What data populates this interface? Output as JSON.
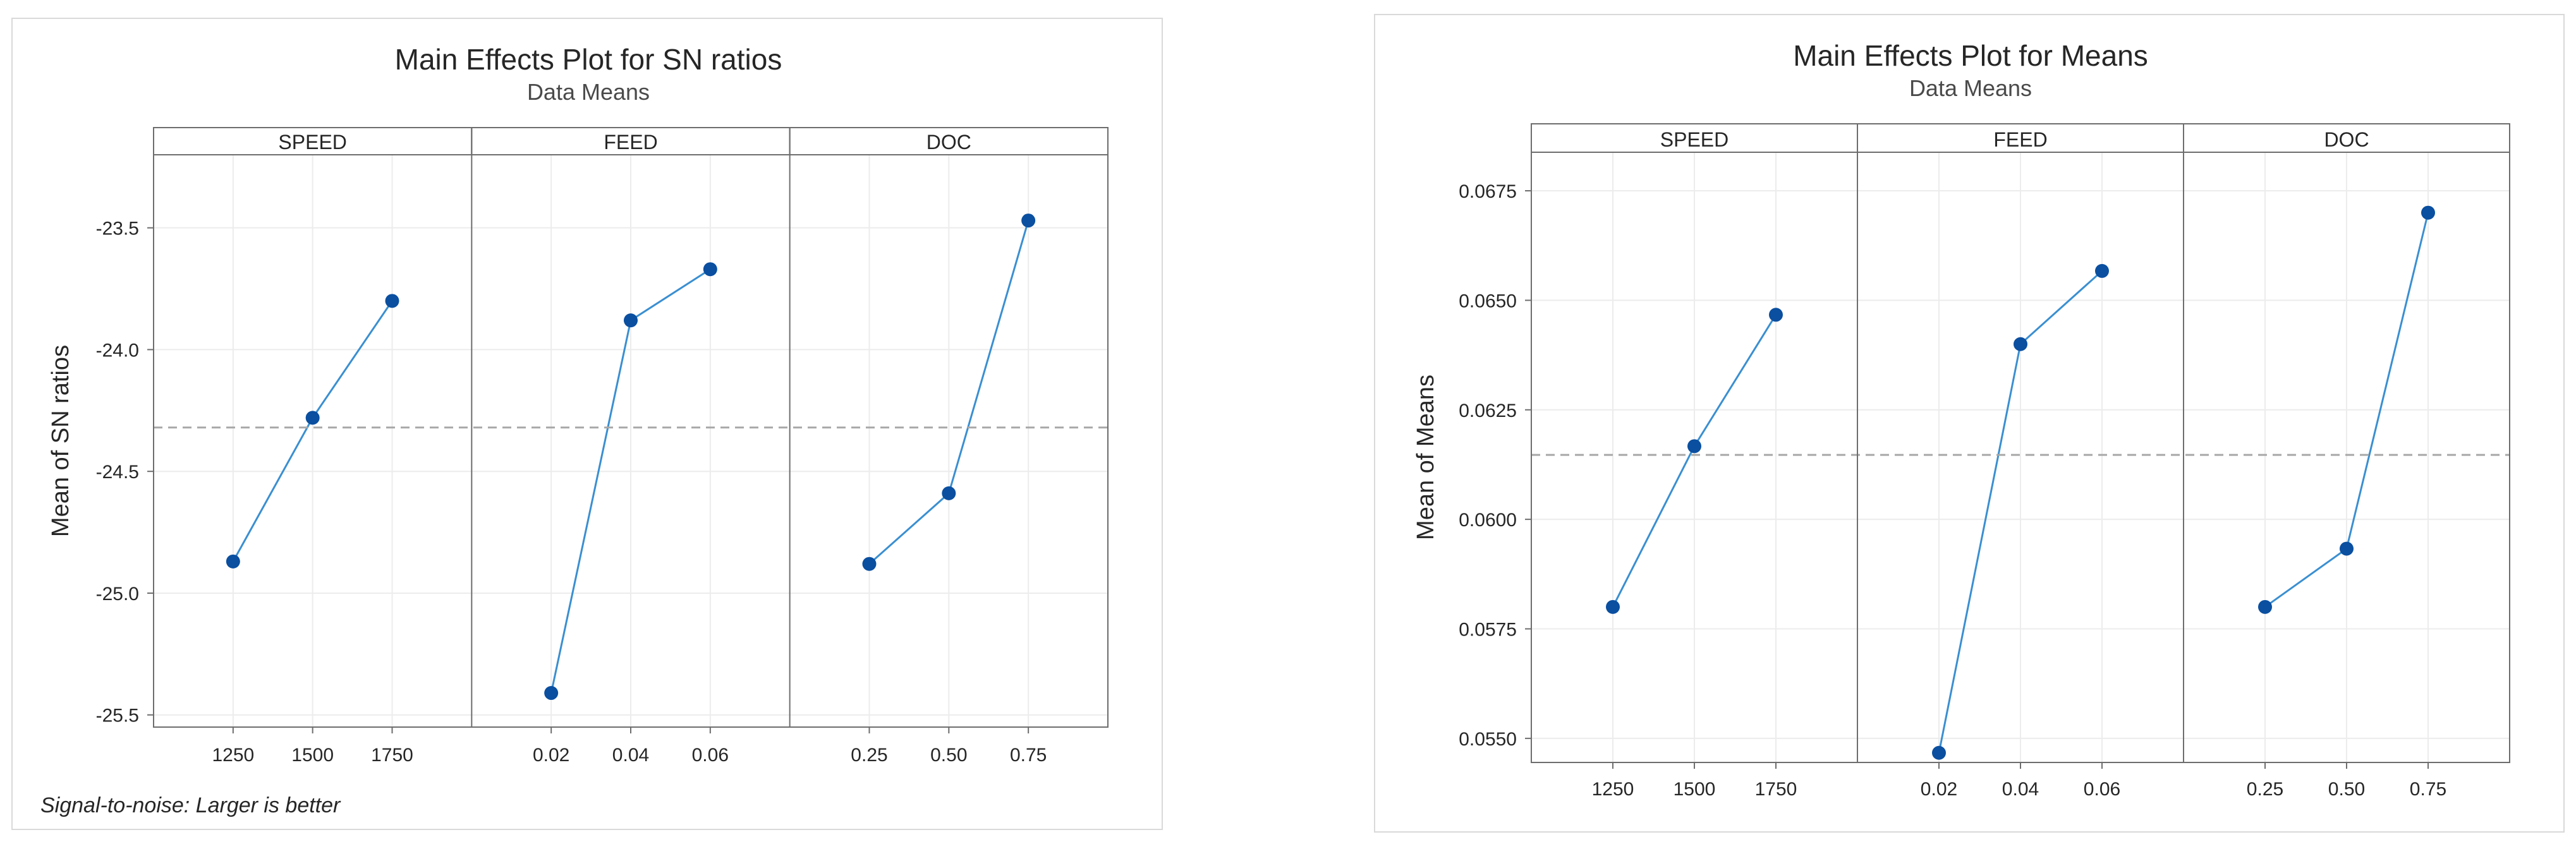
{
  "chart_data": [
    {
      "type": "line",
      "title": "Main Effects Plot for SN ratios",
      "subtitle": "Data Means",
      "ylabel": "Mean of SN ratios",
      "footnote": "Signal-to-noise: Larger is better",
      "ylim": [
        -25.55,
        -23.2
      ],
      "yticks": [
        -23.5,
        -24.0,
        -24.5,
        -25.0,
        -25.5
      ],
      "ytick_labels": [
        "-23.5",
        "-24.0",
        "-24.5",
        "-25.0",
        "-25.5"
      ],
      "reference_line": -24.32,
      "grid": true,
      "colors": {
        "line": "#3a8fd1",
        "marker": "#0a4fa0",
        "reference": "#a8a8a8"
      },
      "panels": [
        {
          "name": "SPEED",
          "x": [
            "1250",
            "1500",
            "1750"
          ],
          "values": [
            -24.87,
            -24.28,
            -23.8
          ]
        },
        {
          "name": "FEED",
          "x": [
            "0.02",
            "0.04",
            "0.06"
          ],
          "values": [
            -25.41,
            -23.88,
            -23.67
          ]
        },
        {
          "name": "DOC",
          "x": [
            "0.25",
            "0.50",
            "0.75"
          ],
          "values": [
            -24.88,
            -24.59,
            -23.47
          ]
        }
      ]
    },
    {
      "type": "line",
      "title": "Main Effects Plot for Means",
      "subtitle": "Data Means",
      "ylabel": "Mean of Means",
      "ylim": [
        0.05445,
        0.06838
      ],
      "yticks": [
        0.0675,
        0.065,
        0.0625,
        0.06,
        0.0575,
        0.055
      ],
      "ytick_labels": [
        "0.0675",
        "0.0650",
        "0.0625",
        "0.0600",
        "0.0575",
        "0.0550"
      ],
      "reference_line": 0.06147,
      "grid": true,
      "colors": {
        "line": "#3a8fd1",
        "marker": "#0a4fa0",
        "reference": "#a8a8a8"
      },
      "panels": [
        {
          "name": "SPEED",
          "x": [
            "1250",
            "1500",
            "1750"
          ],
          "values": [
            0.058,
            0.06167,
            0.06467
          ]
        },
        {
          "name": "FEED",
          "x": [
            "0.02",
            "0.04",
            "0.06"
          ],
          "values": [
            0.05467,
            0.064,
            0.06567
          ]
        },
        {
          "name": "DOC",
          "x": [
            "0.25",
            "0.50",
            "0.75"
          ],
          "values": [
            0.058,
            0.05933,
            0.067
          ]
        }
      ]
    }
  ]
}
